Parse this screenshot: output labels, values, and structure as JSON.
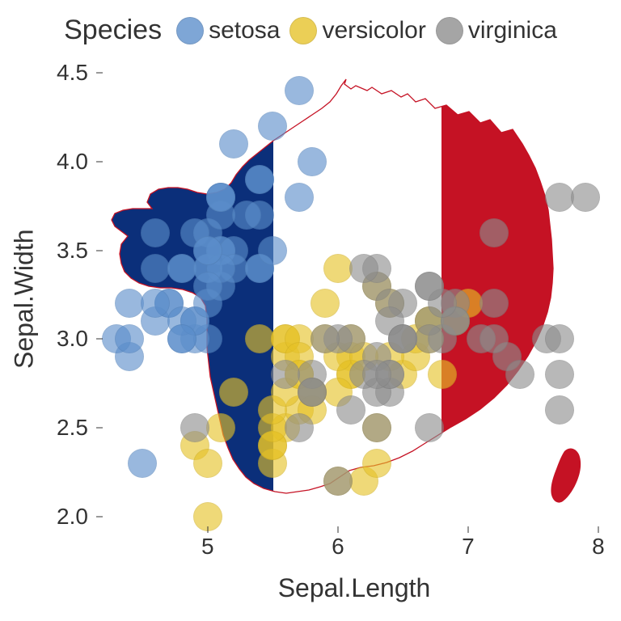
{
  "chart": {
    "type": "scatter",
    "legend_title": "Species",
    "xlabel": "Sepal.Length",
    "ylabel": "Sepal.Width",
    "xlim": [
      4.2,
      8.05
    ],
    "ylim": [
      1.95,
      4.5
    ],
    "xticks": [
      5,
      6,
      7,
      8
    ],
    "yticks": [
      2.0,
      2.5,
      3.0,
      3.5,
      4.0,
      4.5
    ],
    "label_fontsize": 32,
    "tick_fontsize": 28,
    "legend_fontsize": 30,
    "background_color": "#ffffff",
    "flag": {
      "blue": "#0b2f7a",
      "white": "#ffffff",
      "red": "#c51224",
      "outline": "#c51224"
    },
    "marker_radius": 18,
    "marker_opacity": 0.62,
    "marker_border": "rgba(0,0,0,0.08)",
    "series": [
      {
        "name": "setosa",
        "color": "#5b8ecb",
        "points": [
          [
            5.1,
            3.5
          ],
          [
            4.9,
            3.0
          ],
          [
            4.7,
            3.2
          ],
          [
            4.6,
            3.1
          ],
          [
            5.0,
            3.6
          ],
          [
            5.4,
            3.9
          ],
          [
            4.6,
            3.4
          ],
          [
            5.0,
            3.4
          ],
          [
            4.4,
            2.9
          ],
          [
            4.9,
            3.1
          ],
          [
            5.4,
            3.7
          ],
          [
            4.8,
            3.4
          ],
          [
            4.8,
            3.0
          ],
          [
            4.3,
            3.0
          ],
          [
            5.8,
            4.0
          ],
          [
            5.7,
            4.4
          ],
          [
            5.4,
            3.9
          ],
          [
            5.1,
            3.5
          ],
          [
            5.7,
            3.8
          ],
          [
            5.1,
            3.8
          ],
          [
            5.4,
            3.4
          ],
          [
            5.1,
            3.7
          ],
          [
            4.6,
            3.6
          ],
          [
            5.1,
            3.3
          ],
          [
            4.8,
            3.4
          ],
          [
            5.0,
            3.0
          ],
          [
            5.0,
            3.4
          ],
          [
            5.2,
            3.5
          ],
          [
            5.2,
            3.4
          ],
          [
            4.7,
            3.2
          ],
          [
            4.8,
            3.1
          ],
          [
            5.4,
            3.4
          ],
          [
            5.2,
            4.1
          ],
          [
            5.5,
            4.2
          ],
          [
            4.9,
            3.1
          ],
          [
            5.0,
            3.2
          ],
          [
            5.5,
            3.5
          ],
          [
            4.9,
            3.6
          ],
          [
            4.4,
            3.0
          ],
          [
            5.1,
            3.4
          ],
          [
            5.0,
            3.5
          ],
          [
            4.5,
            2.3
          ],
          [
            4.4,
            3.2
          ],
          [
            5.0,
            3.5
          ],
          [
            5.1,
            3.8
          ],
          [
            4.8,
            3.0
          ],
          [
            5.1,
            3.8
          ],
          [
            4.6,
            3.2
          ],
          [
            5.3,
            3.7
          ],
          [
            5.0,
            3.3
          ]
        ]
      },
      {
        "name": "versicolor",
        "color": "#e6c227",
        "points": [
          [
            7.0,
            3.2
          ],
          [
            6.4,
            3.2
          ],
          [
            6.9,
            3.1
          ],
          [
            5.5,
            2.3
          ],
          [
            6.5,
            2.8
          ],
          [
            5.7,
            2.8
          ],
          [
            6.3,
            3.3
          ],
          [
            4.9,
            2.4
          ],
          [
            6.6,
            2.9
          ],
          [
            5.2,
            2.7
          ],
          [
            5.0,
            2.0
          ],
          [
            5.9,
            3.0
          ],
          [
            6.0,
            2.2
          ],
          [
            6.1,
            2.9
          ],
          [
            5.6,
            2.9
          ],
          [
            6.7,
            3.1
          ],
          [
            5.6,
            3.0
          ],
          [
            5.8,
            2.7
          ],
          [
            6.2,
            2.2
          ],
          [
            5.6,
            2.5
          ],
          [
            5.9,
            3.2
          ],
          [
            6.1,
            2.8
          ],
          [
            6.3,
            2.5
          ],
          [
            6.1,
            2.8
          ],
          [
            6.4,
            2.9
          ],
          [
            6.6,
            3.0
          ],
          [
            6.8,
            2.8
          ],
          [
            6.7,
            3.0
          ],
          [
            6.0,
            2.9
          ],
          [
            5.7,
            2.6
          ],
          [
            5.5,
            2.4
          ],
          [
            5.5,
            2.4
          ],
          [
            5.8,
            2.7
          ],
          [
            6.0,
            2.7
          ],
          [
            5.4,
            3.0
          ],
          [
            6.0,
            3.4
          ],
          [
            6.7,
            3.1
          ],
          [
            6.3,
            2.3
          ],
          [
            5.6,
            3.0
          ],
          [
            5.5,
            2.5
          ],
          [
            5.5,
            2.6
          ],
          [
            6.1,
            3.0
          ],
          [
            5.8,
            2.6
          ],
          [
            5.0,
            2.3
          ],
          [
            5.6,
            2.7
          ],
          [
            5.7,
            3.0
          ],
          [
            5.7,
            2.9
          ],
          [
            6.2,
            2.9
          ],
          [
            5.1,
            2.5
          ],
          [
            5.7,
            2.8
          ]
        ]
      },
      {
        "name": "virginica",
        "color": "#8d8d8d",
        "points": [
          [
            6.3,
            3.3
          ],
          [
            5.8,
            2.7
          ],
          [
            7.1,
            3.0
          ],
          [
            6.3,
            2.9
          ],
          [
            6.5,
            3.0
          ],
          [
            7.6,
            3.0
          ],
          [
            4.9,
            2.5
          ],
          [
            7.3,
            2.9
          ],
          [
            6.7,
            2.5
          ],
          [
            7.2,
            3.6
          ],
          [
            6.5,
            3.2
          ],
          [
            6.4,
            2.7
          ],
          [
            6.8,
            3.0
          ],
          [
            5.7,
            2.5
          ],
          [
            5.8,
            2.8
          ],
          [
            6.4,
            3.2
          ],
          [
            6.5,
            3.0
          ],
          [
            7.7,
            3.8
          ],
          [
            7.7,
            2.6
          ],
          [
            6.0,
            2.2
          ],
          [
            6.9,
            3.2
          ],
          [
            5.6,
            2.8
          ],
          [
            7.7,
            2.8
          ],
          [
            6.3,
            2.7
          ],
          [
            6.7,
            3.3
          ],
          [
            7.2,
            3.2
          ],
          [
            6.2,
            2.8
          ],
          [
            6.1,
            3.0
          ],
          [
            6.4,
            2.8
          ],
          [
            7.2,
            3.0
          ],
          [
            7.4,
            2.8
          ],
          [
            7.9,
            3.8
          ],
          [
            6.4,
            2.8
          ],
          [
            6.3,
            2.8
          ],
          [
            6.1,
            2.6
          ],
          [
            7.7,
            3.0
          ],
          [
            6.3,
            3.4
          ],
          [
            6.4,
            3.1
          ],
          [
            6.0,
            3.0
          ],
          [
            6.9,
            3.1
          ],
          [
            6.7,
            3.1
          ],
          [
            6.9,
            3.1
          ],
          [
            5.8,
            2.7
          ],
          [
            6.8,
            3.2
          ],
          [
            6.7,
            3.3
          ],
          [
            6.7,
            3.0
          ],
          [
            6.3,
            2.5
          ],
          [
            6.5,
            3.0
          ],
          [
            6.2,
            3.4
          ],
          [
            5.9,
            3.0
          ]
        ]
      }
    ]
  }
}
